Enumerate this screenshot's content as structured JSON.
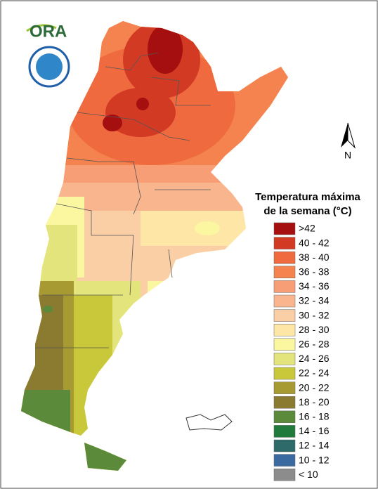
{
  "logo": {
    "text": "ORA"
  },
  "compass": "N",
  "legend": {
    "title": [
      "Temperatura máxima",
      "de la semana (°C)"
    ],
    "items": [
      {
        "label": ">42",
        "color": "#a50f0f"
      },
      {
        "label": "40 - 42",
        "color": "#d23a24"
      },
      {
        "label": "38 - 40",
        "color": "#ef6a3e"
      },
      {
        "label": "36 - 38",
        "color": "#f4834f"
      },
      {
        "label": "34 - 36",
        "color": "#f79e76"
      },
      {
        "label": "32 - 34",
        "color": "#f9b68e"
      },
      {
        "label": "30 - 32",
        "color": "#fbcfa6"
      },
      {
        "label": "28 - 30",
        "color": "#fde6a6"
      },
      {
        "label": "26 - 28",
        "color": "#fbf7a0"
      },
      {
        "label": "24 - 26",
        "color": "#e3e47c"
      },
      {
        "label": "22 - 24",
        "color": "#c9c83a"
      },
      {
        "label": "20 - 22",
        "color": "#a79a33"
      },
      {
        "label": "18 - 20",
        "color": "#8a7b30"
      },
      {
        "label": "16 - 18",
        "color": "#5a8a3a"
      },
      {
        "label": "14 - 16",
        "color": "#1f7a3c"
      },
      {
        "label": "12 - 14",
        "color": "#2f6a6a"
      },
      {
        "label": "10 - 12",
        "color": "#3a6aa0"
      },
      {
        "label": "< 10",
        "color": "#8c8c8c"
      }
    ]
  }
}
